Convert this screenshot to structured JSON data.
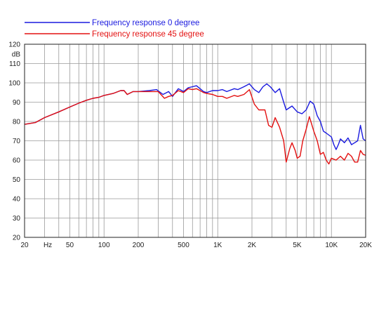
{
  "chart_data": {
    "type": "line",
    "title": "",
    "xlabel": "Hz",
    "ylabel": "dB",
    "xscale": "log",
    "xlim": [
      20,
      20000
    ],
    "ylim": [
      20,
      120
    ],
    "grid": true,
    "legend_position": "top-left",
    "x_tick_values": [
      20,
      50,
      100,
      200,
      500,
      1000,
      2000,
      5000,
      10000,
      20000
    ],
    "x_tick_labels": [
      "20",
      "50",
      "100",
      "200",
      "500",
      "1K",
      "2K",
      "5K",
      "10K",
      "20K"
    ],
    "x_unit_label": "Hz",
    "y_tick_values": [
      20,
      30,
      40,
      50,
      60,
      70,
      80,
      90,
      100,
      110,
      120
    ],
    "y_tick_labels": [
      "20",
      "30",
      "40",
      "50",
      "60",
      "70",
      "80",
      "90",
      "100",
      "110",
      "120"
    ],
    "y_unit_label": "dB",
    "series": [
      {
        "name": "Frequency response 0 degree",
        "color": "#1a1adf",
        "points": [
          [
            20,
            78.5
          ],
          [
            25,
            79.5
          ],
          [
            30,
            82
          ],
          [
            40,
            85
          ],
          [
            50,
            87.5
          ],
          [
            60,
            89.5
          ],
          [
            70,
            91
          ],
          [
            80,
            92
          ],
          [
            90,
            92.5
          ],
          [
            100,
            93.5
          ],
          [
            120,
            94.5
          ],
          [
            140,
            96
          ],
          [
            150,
            96
          ],
          [
            160,
            94
          ],
          [
            180,
            95.5
          ],
          [
            200,
            95.5
          ],
          [
            250,
            96
          ],
          [
            290,
            96.5
          ],
          [
            330,
            94
          ],
          [
            370,
            95.5
          ],
          [
            400,
            93
          ],
          [
            450,
            97
          ],
          [
            500,
            95.5
          ],
          [
            550,
            97.5
          ],
          [
            600,
            98
          ],
          [
            650,
            98.5
          ],
          [
            700,
            97
          ],
          [
            750,
            95.5
          ],
          [
            800,
            95
          ],
          [
            900,
            96
          ],
          [
            1000,
            96
          ],
          [
            1100,
            96.5
          ],
          [
            1200,
            95.5
          ],
          [
            1400,
            97
          ],
          [
            1500,
            96.5
          ],
          [
            1700,
            98
          ],
          [
            1900,
            99.5
          ],
          [
            2100,
            96.5
          ],
          [
            2300,
            95
          ],
          [
            2500,
            98
          ],
          [
            2700,
            99.5
          ],
          [
            2900,
            98
          ],
          [
            3200,
            95
          ],
          [
            3500,
            97
          ],
          [
            3800,
            90
          ],
          [
            4000,
            86
          ],
          [
            4500,
            88
          ],
          [
            5000,
            85
          ],
          [
            5500,
            84
          ],
          [
            6000,
            86
          ],
          [
            6500,
            90.5
          ],
          [
            7000,
            89
          ],
          [
            7500,
            83
          ],
          [
            8000,
            80
          ],
          [
            8500,
            75
          ],
          [
            9000,
            74
          ],
          [
            10000,
            72
          ],
          [
            10500,
            68
          ],
          [
            11000,
            65.5
          ],
          [
            11500,
            68
          ],
          [
            12000,
            71
          ],
          [
            13000,
            69
          ],
          [
            14000,
            71.5
          ],
          [
            15000,
            68
          ],
          [
            16000,
            69
          ],
          [
            17000,
            70
          ],
          [
            18000,
            78
          ],
          [
            19000,
            71
          ],
          [
            20000,
            70
          ]
        ]
      },
      {
        "name": "Frequency response 45 degree",
        "color": "#e31010",
        "points": [
          [
            20,
            78.5
          ],
          [
            25,
            79.5
          ],
          [
            30,
            82
          ],
          [
            40,
            85
          ],
          [
            50,
            87.5
          ],
          [
            60,
            89.5
          ],
          [
            70,
            91
          ],
          [
            80,
            92
          ],
          [
            90,
            92.5
          ],
          [
            100,
            93.5
          ],
          [
            120,
            94.5
          ],
          [
            140,
            96
          ],
          [
            150,
            96
          ],
          [
            160,
            94
          ],
          [
            180,
            95.5
          ],
          [
            200,
            95.5
          ],
          [
            250,
            95.5
          ],
          [
            300,
            95.5
          ],
          [
            340,
            92
          ],
          [
            370,
            93
          ],
          [
            400,
            93.5
          ],
          [
            450,
            96
          ],
          [
            500,
            95
          ],
          [
            550,
            97
          ],
          [
            600,
            96.5
          ],
          [
            650,
            97
          ],
          [
            700,
            96
          ],
          [
            750,
            95
          ],
          [
            800,
            94.5
          ],
          [
            900,
            94
          ],
          [
            1000,
            93
          ],
          [
            1100,
            93
          ],
          [
            1200,
            92
          ],
          [
            1400,
            93.5
          ],
          [
            1500,
            93
          ],
          [
            1700,
            94
          ],
          [
            1900,
            96.5
          ],
          [
            2100,
            89
          ],
          [
            2300,
            86
          ],
          [
            2600,
            86
          ],
          [
            2800,
            78
          ],
          [
            3000,
            77
          ],
          [
            3200,
            82
          ],
          [
            3500,
            77
          ],
          [
            3800,
            70
          ],
          [
            4000,
            59
          ],
          [
            4300,
            66
          ],
          [
            4500,
            69
          ],
          [
            4800,
            65
          ],
          [
            5000,
            61
          ],
          [
            5300,
            62
          ],
          [
            5600,
            70
          ],
          [
            6000,
            76
          ],
          [
            6400,
            82.5
          ],
          [
            7000,
            75
          ],
          [
            7500,
            70
          ],
          [
            8000,
            63
          ],
          [
            8500,
            64
          ],
          [
            9000,
            60
          ],
          [
            9500,
            58
          ],
          [
            10000,
            61
          ],
          [
            11000,
            60
          ],
          [
            12000,
            62
          ],
          [
            13000,
            60
          ],
          [
            14000,
            63.5
          ],
          [
            15000,
            62
          ],
          [
            16000,
            59
          ],
          [
            17000,
            59
          ],
          [
            18000,
            65
          ],
          [
            19000,
            63
          ],
          [
            20000,
            62.5
          ]
        ]
      }
    ]
  }
}
